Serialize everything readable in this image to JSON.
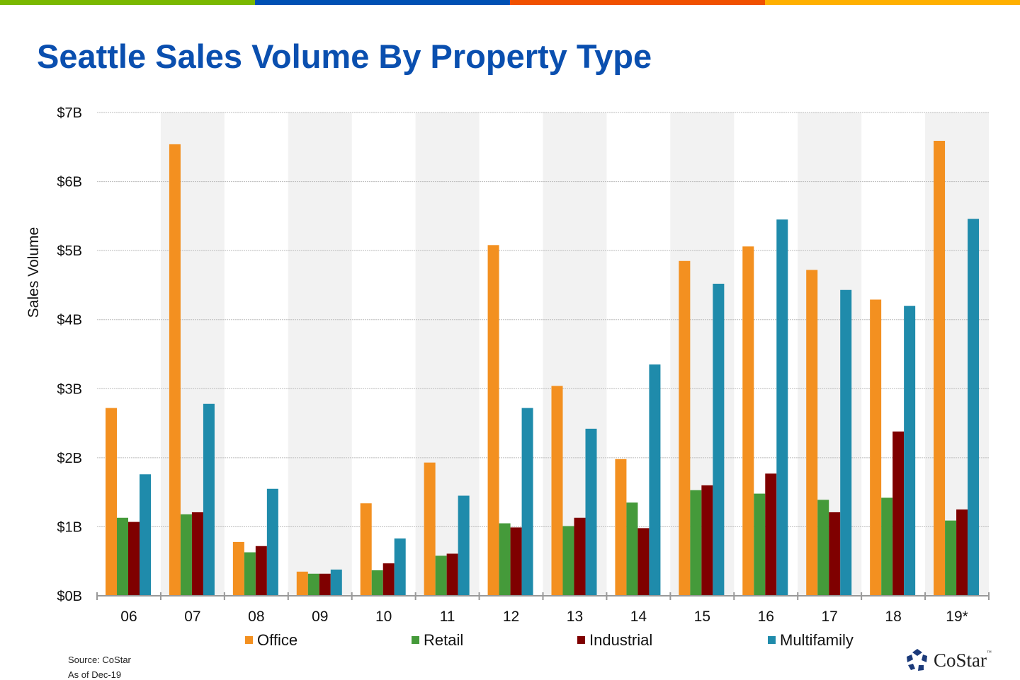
{
  "stripe_colors": [
    "#7ab800",
    "#0050b3",
    "#f05000",
    "#ffb000"
  ],
  "footer": {
    "source": "Source: CoStar",
    "as_of": "As of Dec-19"
  },
  "logo": {
    "text": "CoStar",
    "tm": "™"
  },
  "chart_data": {
    "type": "bar",
    "title": "Seattle Sales Volume By Property Type",
    "ylabel": "Sales Volume",
    "xlabel": "",
    "ylim": [
      0,
      7
    ],
    "yticks": [
      "$0B",
      "$1B",
      "$2B",
      "$3B",
      "$4B",
      "$5B",
      "$6B",
      "$7B"
    ],
    "grid": true,
    "legend": "bottom",
    "categories": [
      "06",
      "07",
      "08",
      "09",
      "10",
      "11",
      "12",
      "13",
      "14",
      "15",
      "16",
      "17",
      "18",
      "19*"
    ],
    "series": [
      {
        "name": "Office",
        "color": "#f39020",
        "values": [
          2.72,
          6.54,
          0.78,
          0.35,
          1.34,
          1.93,
          5.08,
          3.04,
          1.98,
          4.85,
          5.06,
          4.72,
          4.29,
          6.59
        ]
      },
      {
        "name": "Retail",
        "color": "#459a3a",
        "values": [
          1.13,
          1.18,
          0.63,
          0.32,
          0.37,
          0.58,
          1.05,
          1.01,
          1.35,
          1.53,
          1.48,
          1.39,
          1.42,
          1.09
        ]
      },
      {
        "name": "Industrial",
        "color": "#7f0000",
        "values": [
          1.07,
          1.21,
          0.72,
          0.32,
          0.47,
          0.61,
          0.99,
          1.13,
          0.98,
          1.6,
          1.77,
          1.21,
          2.38,
          1.25
        ]
      },
      {
        "name": "Multifamily",
        "color": "#1f8bab",
        "values": [
          1.76,
          2.78,
          1.55,
          0.38,
          0.83,
          1.45,
          2.72,
          2.42,
          3.35,
          4.52,
          5.45,
          4.43,
          4.2,
          5.46
        ]
      }
    ]
  }
}
